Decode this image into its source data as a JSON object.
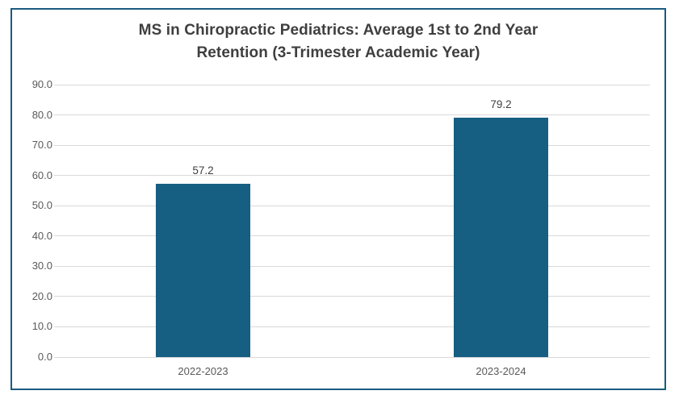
{
  "chart_data": {
    "type": "bar",
    "title": "MS in Chiropractic Pediatrics: Average 1st to 2nd Year Retention (3-Trimester Academic Year)",
    "title_lines": [
      "MS in Chiropractic Pediatrics: Average 1st to 2nd Year",
      "Retention (3-Trimester Academic Year)"
    ],
    "categories": [
      "2022-2023",
      "2023-2024"
    ],
    "values": [
      57.2,
      79.2
    ],
    "value_labels": [
      "57.2",
      "79.2"
    ],
    "xlabel": "",
    "ylabel": "",
    "ylim": [
      0,
      90
    ],
    "ytick_step": 10,
    "yticks": [
      "0.0",
      "10.0",
      "20.0",
      "30.0",
      "40.0",
      "50.0",
      "60.0",
      "70.0",
      "80.0",
      "90.0"
    ],
    "grid": "horizontal",
    "legend": "none",
    "colors": {
      "bar_fill": "#165E82",
      "frame_border": "#1A5A80",
      "gridline": "#D9D9D9",
      "axis_label": "#595959",
      "data_label": "#404040",
      "title": "#3F3F3F",
      "background": "#FFFFFF"
    }
  }
}
